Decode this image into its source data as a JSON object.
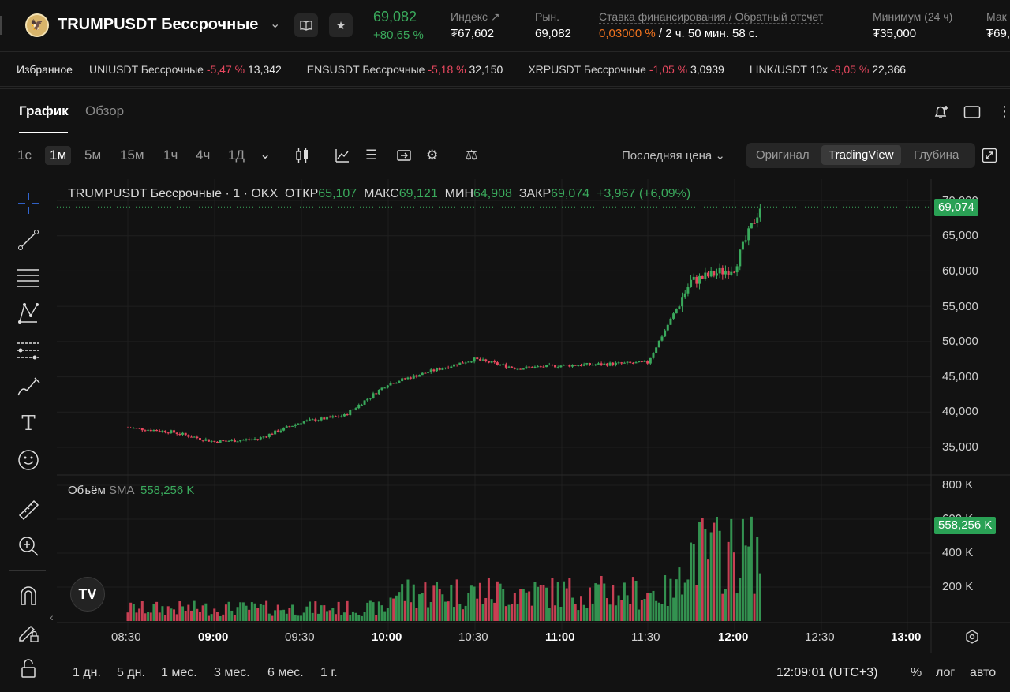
{
  "header": {
    "symbol": "TRUMPUSDT Бессрочные",
    "last_price": "69,082",
    "change": "+80,65 %",
    "index_label": "Индекс",
    "index_value": "₮67,602",
    "market_label": "Рын.",
    "market_value": "69,082",
    "funding_label": "Ставка финансирования / Обратный отсчет",
    "funding_rate": "0,03000 %",
    "funding_countdown": " / 2 ч. 50 мин. 58 с.",
    "low_label": "Минимум (24 ч)",
    "low_value": "₮35,000",
    "high_label": "Мак",
    "high_value": "₮69,"
  },
  "favorites": {
    "title": "Избранное",
    "items": [
      {
        "name": "UNIUSDT Бессрочные",
        "change": "-5,47 %",
        "price": "13,342"
      },
      {
        "name": "ENSUSDT Бессрочные",
        "change": "-5,18 %",
        "price": "32,150"
      },
      {
        "name": "XRPUSDT Бессрочные",
        "change": "-1,05 %",
        "price": "3,0939"
      },
      {
        "name": "LINK/USDT 10x",
        "change": "-8,05 %",
        "price": "22,366"
      }
    ]
  },
  "tabs": {
    "chart": "График",
    "overview": "Обзор"
  },
  "toolbar": {
    "timeframes": [
      "1с",
      "1м",
      "5м",
      "15м",
      "1ч",
      "4ч",
      "1Д"
    ],
    "active_timeframe": "1м",
    "price_source": "Последняя цена",
    "views": [
      "Оригинал",
      "TradingView",
      "Глубина"
    ],
    "active_view": "TradingView"
  },
  "legend": {
    "title": "TRUMPUSDT Бессрочные · 1 · OKX",
    "open_label": "ОТКР",
    "open": "65,107",
    "high_label": "МАКС",
    "high": "69,121",
    "low_label": "МИН",
    "low": "64,908",
    "close_label": "ЗАКР",
    "close": "69,074",
    "delta": "+3,967 (+6,09%)"
  },
  "volume_legend": {
    "label": "Объём",
    "sma": "SMA",
    "value": "558,256 K"
  },
  "price_axis": [
    "70,000",
    "65,000",
    "60,000",
    "55,000",
    "50,000",
    "45,000",
    "40,000",
    "35,000"
  ],
  "price_tag": "69,074",
  "volume_axis": [
    "800 K",
    "600 K",
    "400 K",
    "200 K"
  ],
  "volume_tag": "558,256 K",
  "time_axis": [
    {
      "label": "08:30",
      "bold": false
    },
    {
      "label": "09:00",
      "bold": true
    },
    {
      "label": "09:30",
      "bold": false
    },
    {
      "label": "10:00",
      "bold": true
    },
    {
      "label": "10:30",
      "bold": false
    },
    {
      "label": "11:00",
      "bold": true
    },
    {
      "label": "11:30",
      "bold": false
    },
    {
      "label": "12:00",
      "bold": true
    },
    {
      "label": "12:30",
      "bold": false
    },
    {
      "label": "13:00",
      "bold": true
    }
  ],
  "bottom": {
    "ranges": [
      "1 дн.",
      "5 дн.",
      "1 мес.",
      "3 мес.",
      "6 мес.",
      "1 г."
    ],
    "clock": "12:09:01 (UTC+3)",
    "percent": "%",
    "log": "лог",
    "auto": "авто"
  },
  "colors": {
    "up": "#3aa95c",
    "down": "#e8485f",
    "funding": "#f0731f"
  },
  "chart_data": {
    "type": "candlestick",
    "title": "TRUMPUSDT Бессрочные · 1 · OKX",
    "ylim": [
      33000,
      71000
    ],
    "x_range": [
      "08:30",
      "13:00"
    ],
    "approx_close_series": [
      {
        "t": "08:30",
        "close": 37800
      },
      {
        "t": "08:45",
        "close": 37200
      },
      {
        "t": "09:00",
        "close": 35800
      },
      {
        "t": "09:15",
        "close": 36200
      },
      {
        "t": "09:30",
        "close": 38600
      },
      {
        "t": "09:45",
        "close": 39500
      },
      {
        "t": "10:00",
        "close": 44000
      },
      {
        "t": "10:15",
        "close": 45800
      },
      {
        "t": "10:30",
        "close": 47500
      },
      {
        "t": "10:45",
        "close": 46200
      },
      {
        "t": "11:00",
        "close": 46600
      },
      {
        "t": "11:15",
        "close": 46800
      },
      {
        "t": "11:30",
        "close": 47000
      },
      {
        "t": "11:45",
        "close": 58500
      },
      {
        "t": "12:00",
        "close": 60500
      },
      {
        "t": "12:09",
        "close": 69074
      }
    ],
    "volume_sma": 558256
  }
}
